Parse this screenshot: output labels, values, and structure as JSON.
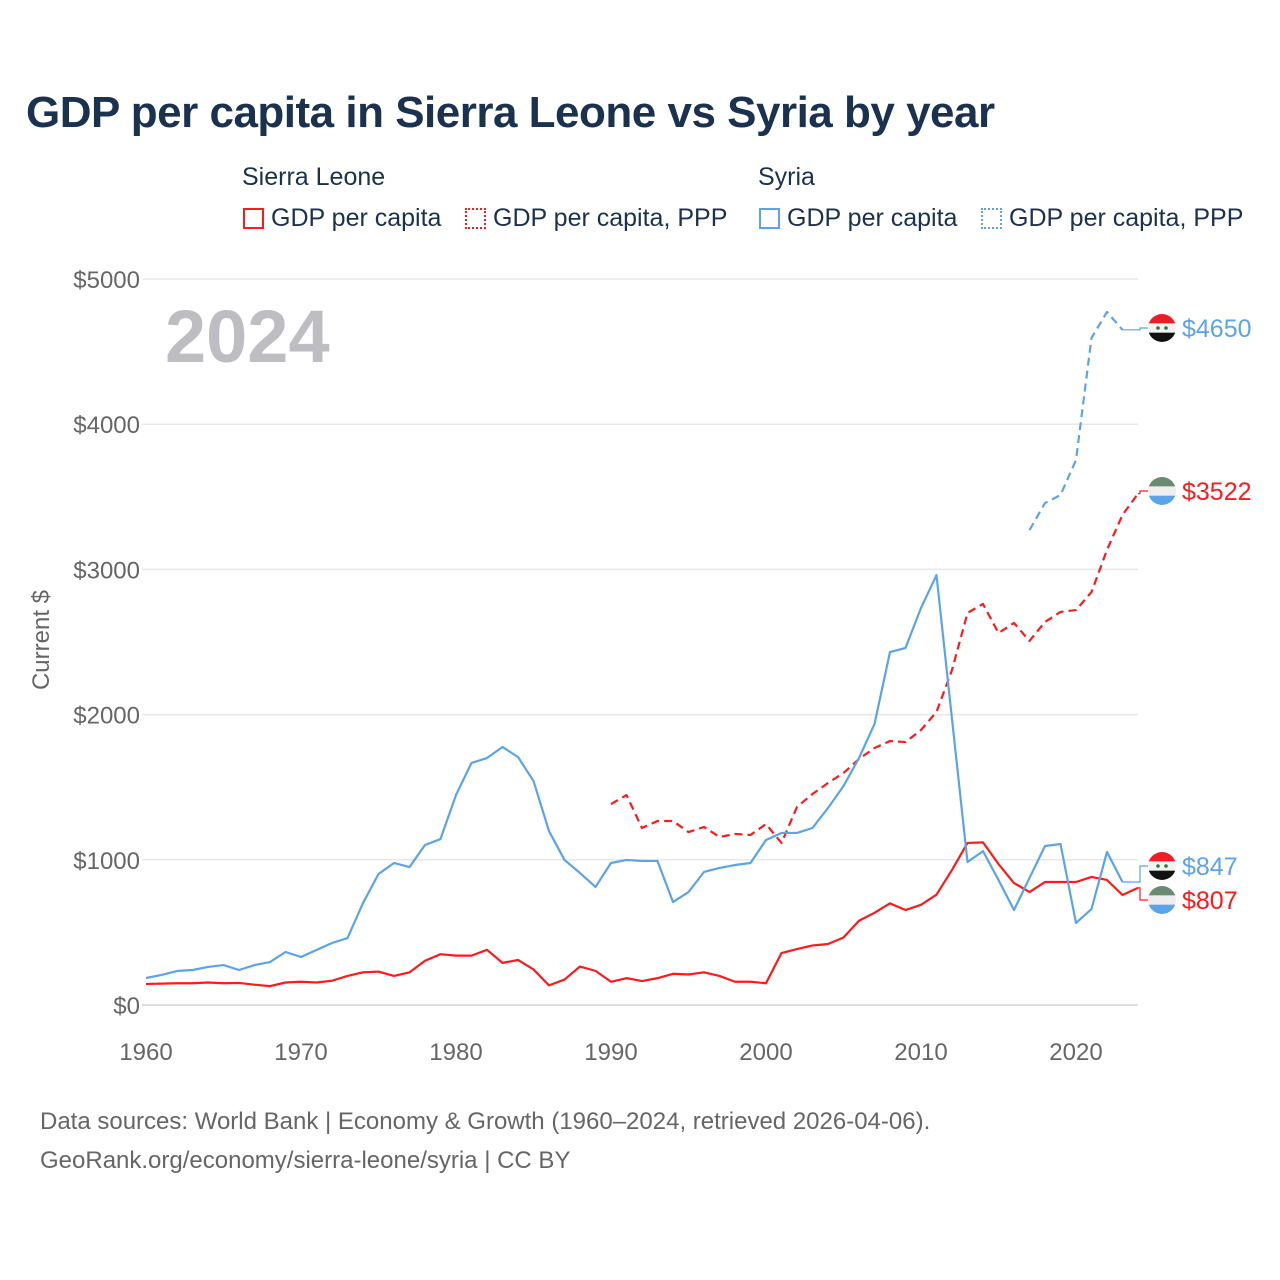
{
  "chart_data": {
    "type": "line",
    "title": "GDP per capita in Sierra Leone vs Syria by year",
    "ylabel": "Current $",
    "xlabel": "",
    "xlim": [
      1960,
      2024
    ],
    "ylim": [
      0,
      5000
    ],
    "x_ticks": [
      1960,
      1970,
      1980,
      1990,
      2000,
      2010,
      2020
    ],
    "x_tick_labels": [
      "1960",
      "1970",
      "1980",
      "1990",
      "2000",
      "2010",
      "2020"
    ],
    "y_ticks": [
      0,
      1000,
      2000,
      3000,
      4000,
      5000
    ],
    "y_tick_labels": [
      "$0",
      "$1000",
      "$2000",
      "$3000",
      "$4000",
      "$5000"
    ],
    "grid": true,
    "year_watermark": "2024",
    "legend": {
      "placement": "top",
      "groups": [
        {
          "heading": "Sierra Leone",
          "items": [
            "GDP per capita",
            "GDP per capita, PPP"
          ]
        },
        {
          "heading": "Syria",
          "items": [
            "GDP per capita",
            "GDP per capita, PPP"
          ]
        }
      ]
    },
    "series": [
      {
        "name": "Sierra Leone GDP per capita",
        "country": "Sierra Leone",
        "color": "#ff1a1a",
        "dash": false,
        "start": 1960,
        "values": [
          145,
          147,
          150,
          150,
          155,
          150,
          152,
          140,
          130,
          155,
          160,
          155,
          167,
          200,
          225,
          230,
          200,
          225,
          305,
          350,
          340,
          340,
          380,
          290,
          310,
          245,
          135,
          175,
          265,
          235,
          160,
          185,
          165,
          185,
          215,
          210,
          225,
          200,
          160,
          160,
          150,
          358,
          385,
          410,
          420,
          465,
          580,
          635,
          700,
          654,
          690,
          760,
          930,
          1116,
          1120,
          971,
          840,
          778,
          847,
          847,
          847,
          882,
          861,
          758,
          807
        ],
        "end_label": "$807",
        "flag": "sierra-leone"
      },
      {
        "name": "Sierra Leone GDP per capita, PPP",
        "country": "Sierra Leone",
        "color": "#ff1a1a",
        "dash": true,
        "start": 1990,
        "values": [
          1384,
          1446,
          1219,
          1267,
          1267,
          1191,
          1226,
          1157,
          1178,
          1171,
          1246,
          1116,
          1364,
          1453,
          1529,
          1598,
          1694,
          1770,
          1818,
          1811,
          1894,
          2018,
          2307,
          2700,
          2762,
          2562,
          2631,
          2507,
          2638,
          2707,
          2720,
          2844,
          3134,
          3375,
          3522
        ],
        "end_label": "$3522",
        "flag": "sierra-leone"
      },
      {
        "name": "Syria GDP per capita",
        "country": "Syria",
        "color": "#5ba4ea",
        "dash": false,
        "start": 1960,
        "values": [
          186,
          207,
          234,
          241,
          262,
          275,
          241,
          275,
          296,
          365,
          331,
          379,
          427,
          461,
          702,
          902,
          978,
          950,
          1102,
          1143,
          1446,
          1667,
          1701,
          1777,
          1708,
          1543,
          1198,
          999,
          909,
          813,
          978,
          999,
          992,
          992,
          709,
          778,
          916,
          944,
          964,
          978,
          1136,
          1185,
          1185,
          1219,
          1357,
          1508,
          1701,
          1935,
          2431,
          2459,
          2734,
          2961,
          1970,
          985,
          1060,
          861,
          654,
          875,
          1095,
          1109,
          565,
          661,
          1054,
          847
        ],
        "end_label": "$847",
        "flag": "syria"
      },
      {
        "name": "Syria GDP per capita, PPP",
        "country": "Syria",
        "color": "#5ba4ea",
        "dash": true,
        "start": 2017,
        "values": [
          3271,
          3457,
          3512,
          3753,
          4594,
          4773,
          4650
        ],
        "end_label": "$4650",
        "flag": "syria"
      }
    ]
  },
  "footer": {
    "line1": "Data sources: World Bank | Economy & Growth (1960–2024, retrieved 2026-04-06).",
    "line2": "GeoRank.org/economy/sierra-leone/syria | CC BY"
  }
}
